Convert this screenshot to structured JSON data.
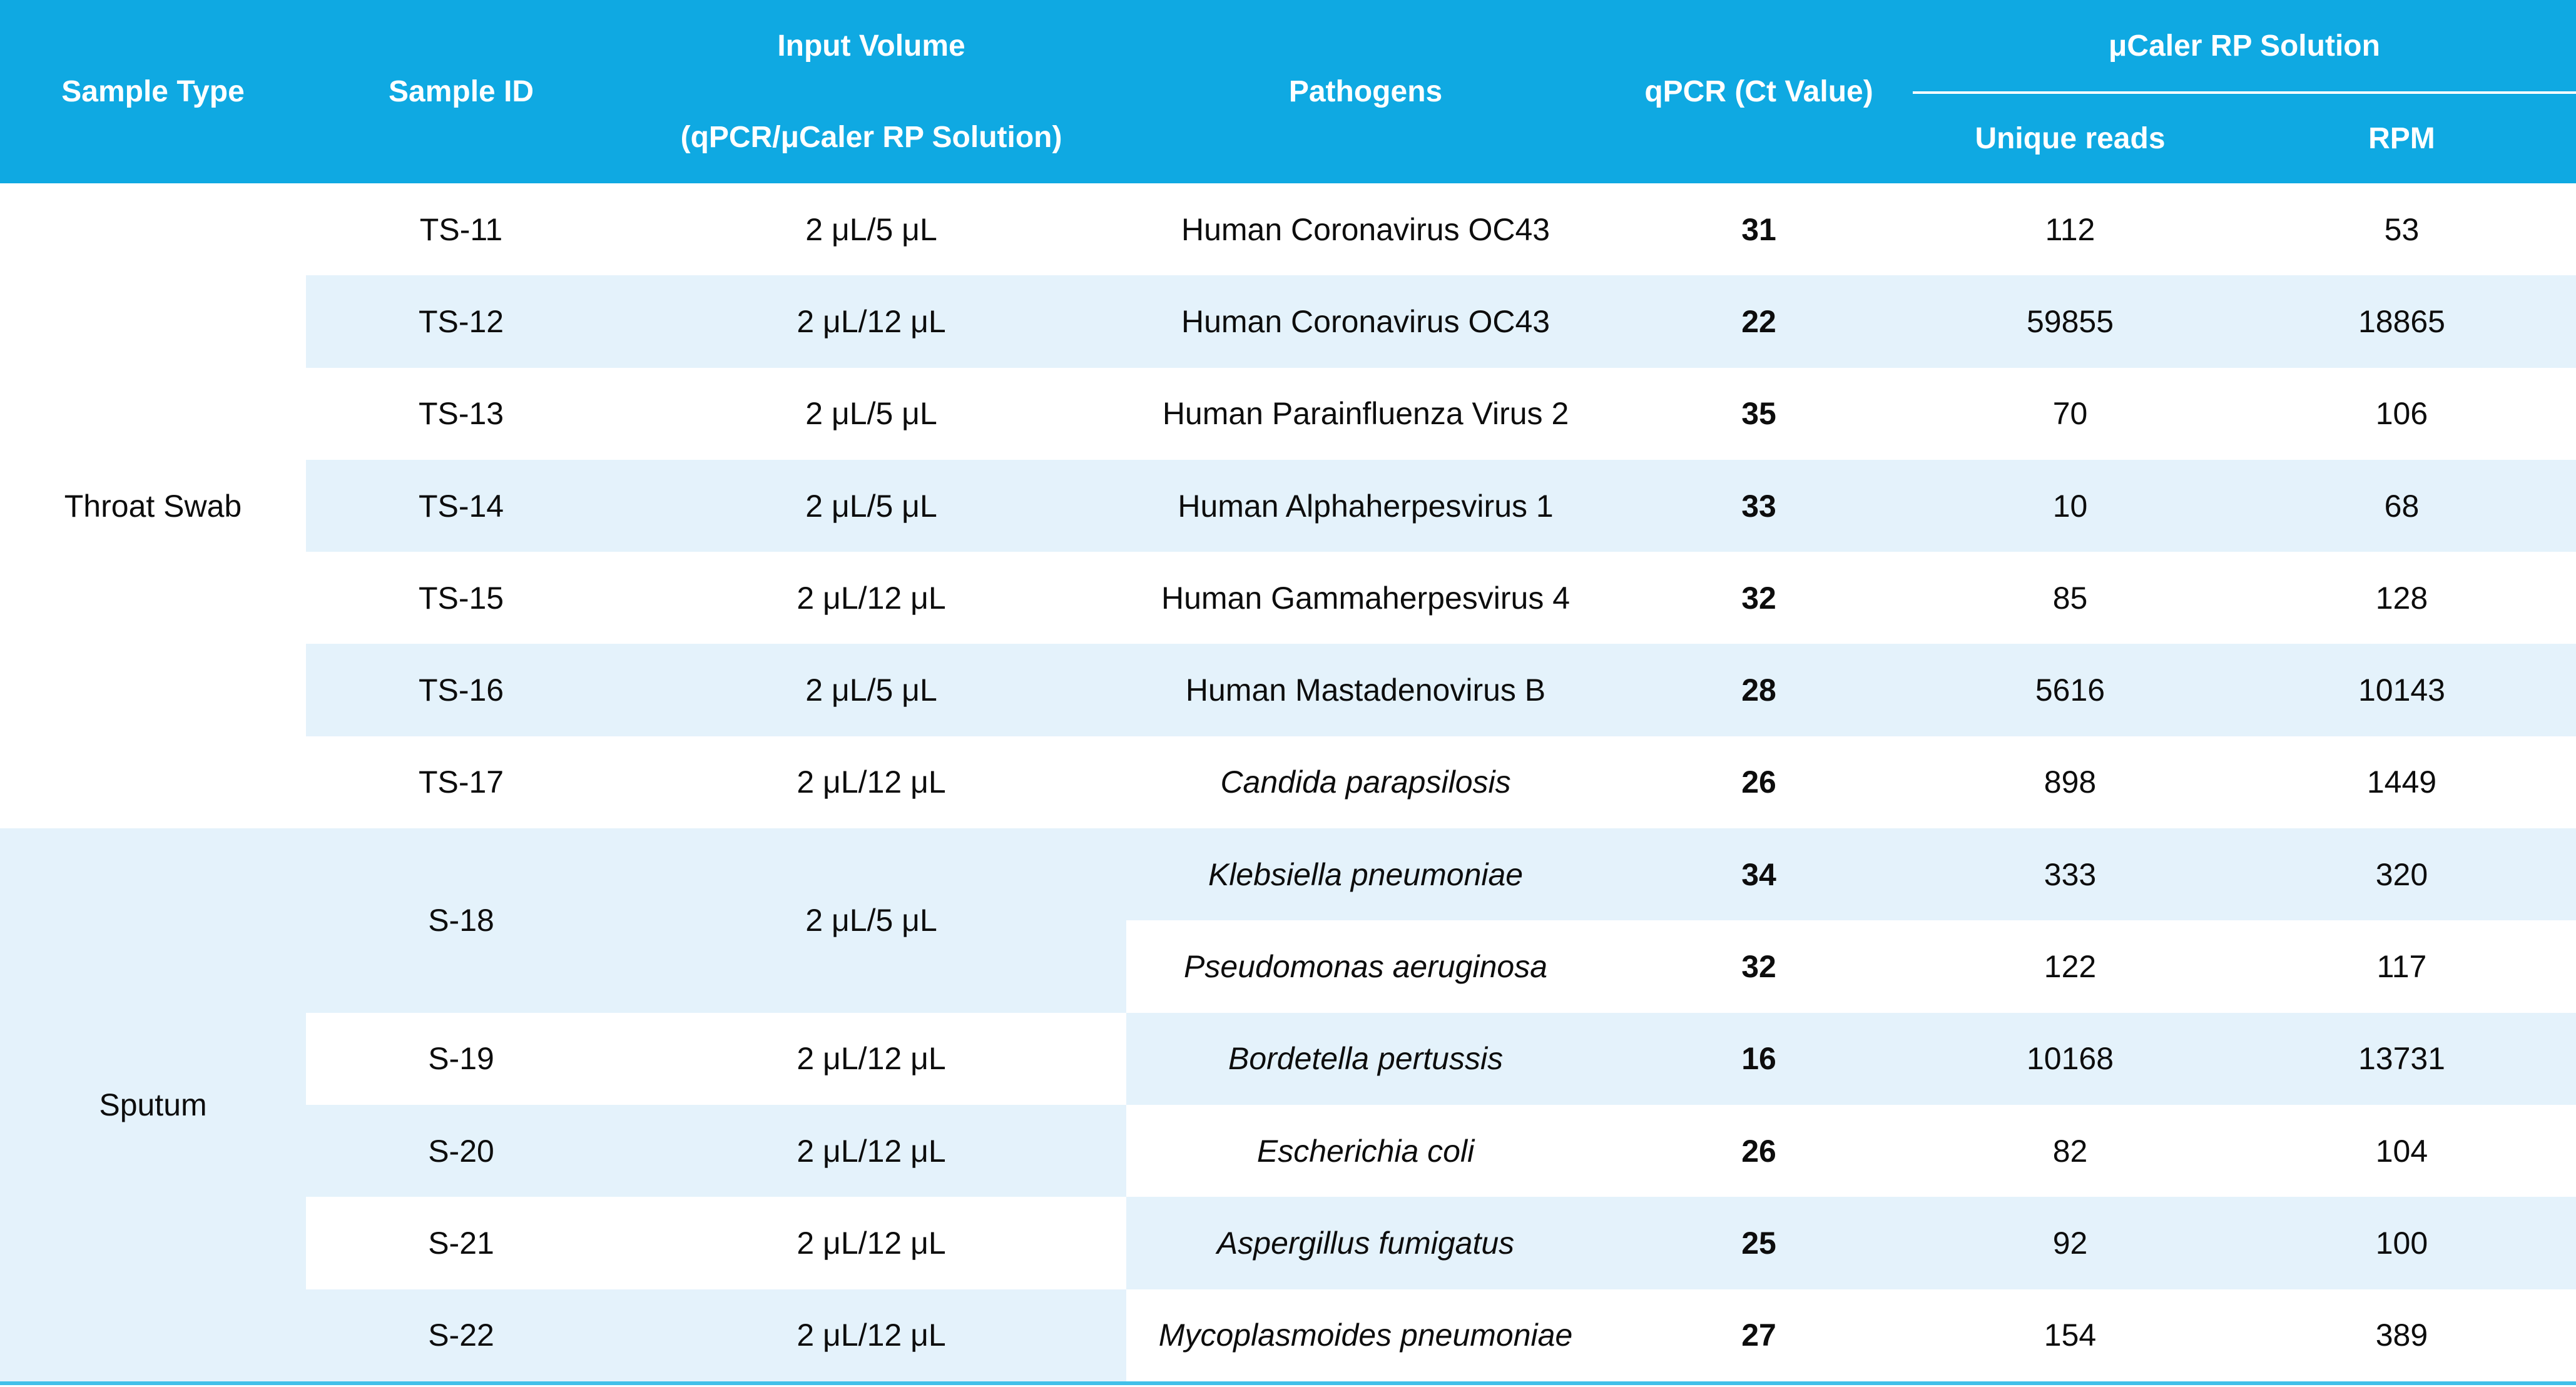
{
  "table": {
    "header": {
      "sample_type": "Sample Type",
      "sample_id": "Sample ID",
      "input_volume_line1": "Input Volume",
      "input_volume_line2": "(qPCR/μCaler RP Solution)",
      "pathogens": "Pathogens",
      "qpcr": "qPCR (Ct Value)",
      "ucaler_group": "μCaler RP Solution",
      "unique_reads": "Unique reads",
      "rpm": "RPM"
    },
    "groups": [
      {
        "sample_type": "Throat Swab"
      },
      {
        "sample_type": "Sputum"
      }
    ],
    "rows": [
      {
        "sample_id": "TS-11",
        "input_volume": "2 μL/5 μL",
        "pathogen": "Human Coronavirus OC43",
        "ct": "31",
        "unique_reads": "112",
        "rpm": "53"
      },
      {
        "sample_id": "TS-12",
        "input_volume": "2 μL/12 μL",
        "pathogen": "Human Coronavirus OC43",
        "ct": "22",
        "unique_reads": "59855",
        "rpm": "18865"
      },
      {
        "sample_id": "TS-13",
        "input_volume": "2 μL/5 μL",
        "pathogen": "Human Parainfluenza Virus 2",
        "ct": "35",
        "unique_reads": "70",
        "rpm": "106"
      },
      {
        "sample_id": "TS-14",
        "input_volume": "2 μL/5 μL",
        "pathogen": "Human Alphaherpesvirus 1",
        "ct": "33",
        "unique_reads": "10",
        "rpm": "68"
      },
      {
        "sample_id": "TS-15",
        "input_volume": "2 μL/12 μL",
        "pathogen": "Human Gammaherpesvirus 4",
        "ct": "32",
        "unique_reads": "85",
        "rpm": "128"
      },
      {
        "sample_id": "TS-16",
        "input_volume": "2 μL/5 μL",
        "pathogen": "Human Mastadenovirus B",
        "ct": "28",
        "unique_reads": "5616",
        "rpm": "10143"
      },
      {
        "sample_id": "TS-17",
        "input_volume": "2 μL/12 μL",
        "pathogen": "Candida parapsilosis",
        "ct": "26",
        "unique_reads": "898",
        "rpm": "1449"
      },
      {
        "sample_id": "S-18",
        "input_volume": "2 μL/5 μL",
        "pathogen": "Klebsiella pneumoniae",
        "ct": "34",
        "unique_reads": "333",
        "rpm": "320"
      },
      {
        "pathogen": "Pseudomonas aeruginosa",
        "ct": "32",
        "unique_reads": "122",
        "rpm": "117"
      },
      {
        "sample_id": "S-19",
        "input_volume": "2 μL/12 μL",
        "pathogen": "Bordetella pertussis",
        "ct": "16",
        "unique_reads": "10168",
        "rpm": "13731"
      },
      {
        "sample_id": "S-20",
        "input_volume": "2 μL/12 μL",
        "pathogen": "Escherichia coli",
        "ct": "26",
        "unique_reads": "82",
        "rpm": "104"
      },
      {
        "sample_id": "S-21",
        "input_volume": "2 μL/12 μL",
        "pathogen": "Aspergillus fumigatus",
        "ct": "25",
        "unique_reads": "92",
        "rpm": "100"
      },
      {
        "sample_id": "S-22",
        "input_volume": "2 μL/12 μL",
        "pathogen": "Mycoplasmoides pneumoniae",
        "ct": "27",
        "unique_reads": "154",
        "rpm": "389"
      }
    ],
    "colors": {
      "header_background": "#0fa9e2",
      "stripe_background": "#e4f2fb",
      "bottom_rule": "#41c0e9",
      "header_text": "#ffffff",
      "body_text": "#0d0d0d"
    }
  }
}
